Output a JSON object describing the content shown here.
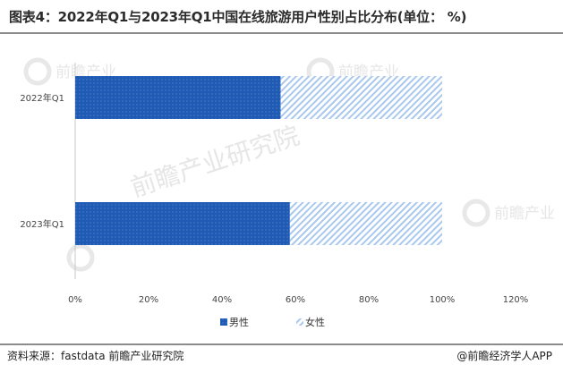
{
  "title": "图表4：2022年Q1与2023年Q1中国在线旅游用户性别占比分布(单位： %)",
  "source": "资料来源：fastdata 前瞻产业研究院",
  "brand": "@前瞻经济学人APP",
  "watermark": {
    "main_a": "前瞻产业",
    "main_b": "前瞻产业研究院"
  },
  "colors": {
    "male": "#1f5bb4",
    "female_stripe": "#a9c8ee",
    "axis": "#c8c8c8"
  },
  "chart_data": {
    "type": "bar",
    "orientation": "horizontal",
    "stacked": true,
    "percent": true,
    "categories": [
      "2022年Q1",
      "2023年Q1"
    ],
    "series": [
      {
        "name": "男性",
        "values": [
          56.0,
          58.5
        ]
      },
      {
        "name": "女性",
        "values": [
          44.0,
          41.5
        ]
      }
    ],
    "xlim": [
      0,
      120
    ],
    "xticks": [
      "0%",
      "20%",
      "40%",
      "60%",
      "80%",
      "100%",
      "120%"
    ],
    "legend_position": "bottom",
    "grid": false
  }
}
